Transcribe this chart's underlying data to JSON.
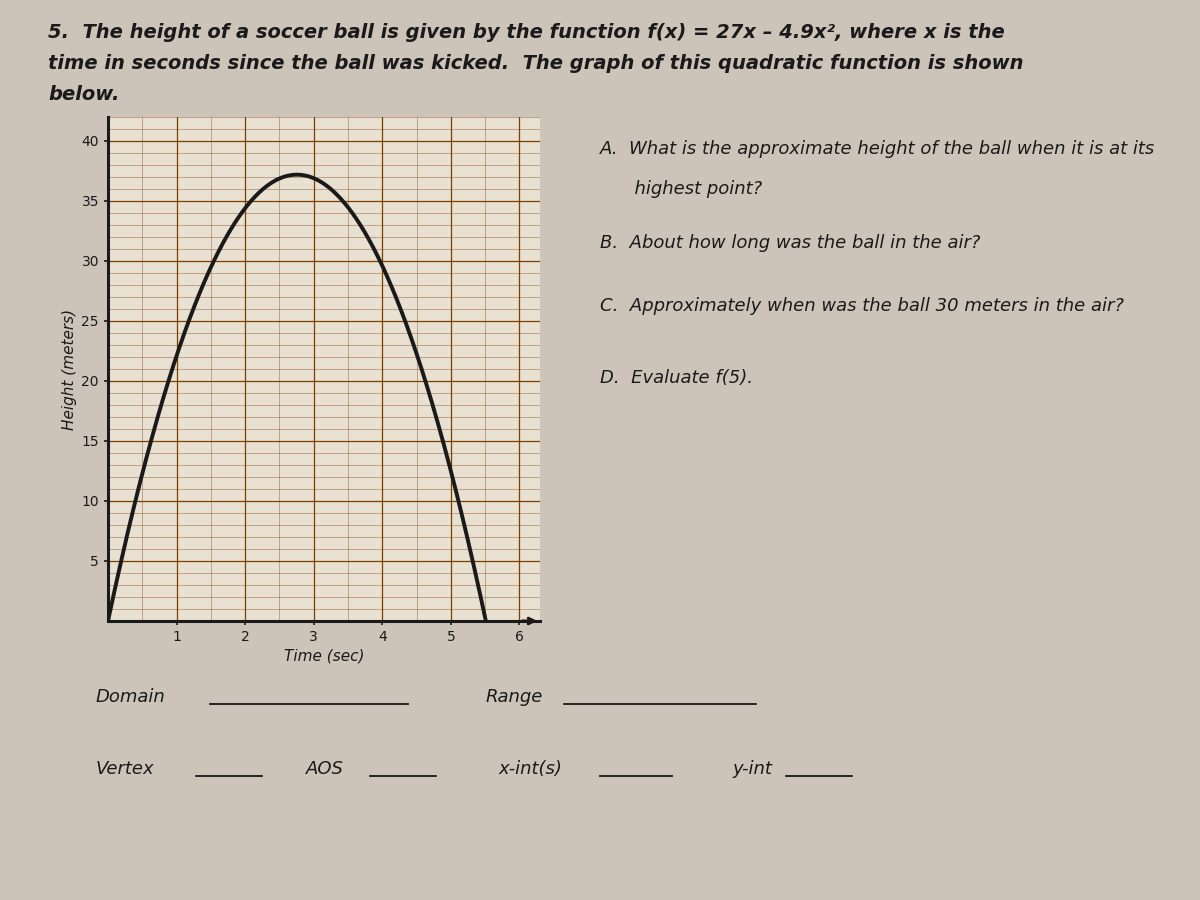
{
  "title_line1": "5.  The height of a soccer ball is given by the function f(x) = 27x – 4.9x², where x is the",
  "title_line2": "time in seconds since the ball was kicked.  The graph of this quadratic function is shown",
  "title_line3": "below.",
  "xlabel": "Time (sec)",
  "ylabel": "Height (meters)",
  "xlim": [
    0,
    6.3
  ],
  "ylim": [
    0,
    42
  ],
  "xticks": [
    1,
    2,
    3,
    4,
    5,
    6
  ],
  "yticks": [
    5,
    10,
    15,
    20,
    25,
    30,
    35,
    40
  ],
  "curve_color": "#1a1a1a",
  "grid_major_color": "#7B3F00",
  "grid_minor_color": "#9B6040",
  "background_color": "#ccc4b8",
  "plot_bg_color": "#e8e0d0",
  "questions_A1": "A.  What is the approximate height of the ball when it is at its",
  "questions_A2": "      highest point?",
  "questions_B": "B.  About how long was the ball in the air?",
  "questions_C": "C.  Approximately when was the ball 30 meters in the air?",
  "questions_D": "D.  Evaluate f(5).",
  "font_size_title": 14,
  "font_size_questions": 13,
  "font_size_labels": 13,
  "curve_linewidth": 2.8
}
